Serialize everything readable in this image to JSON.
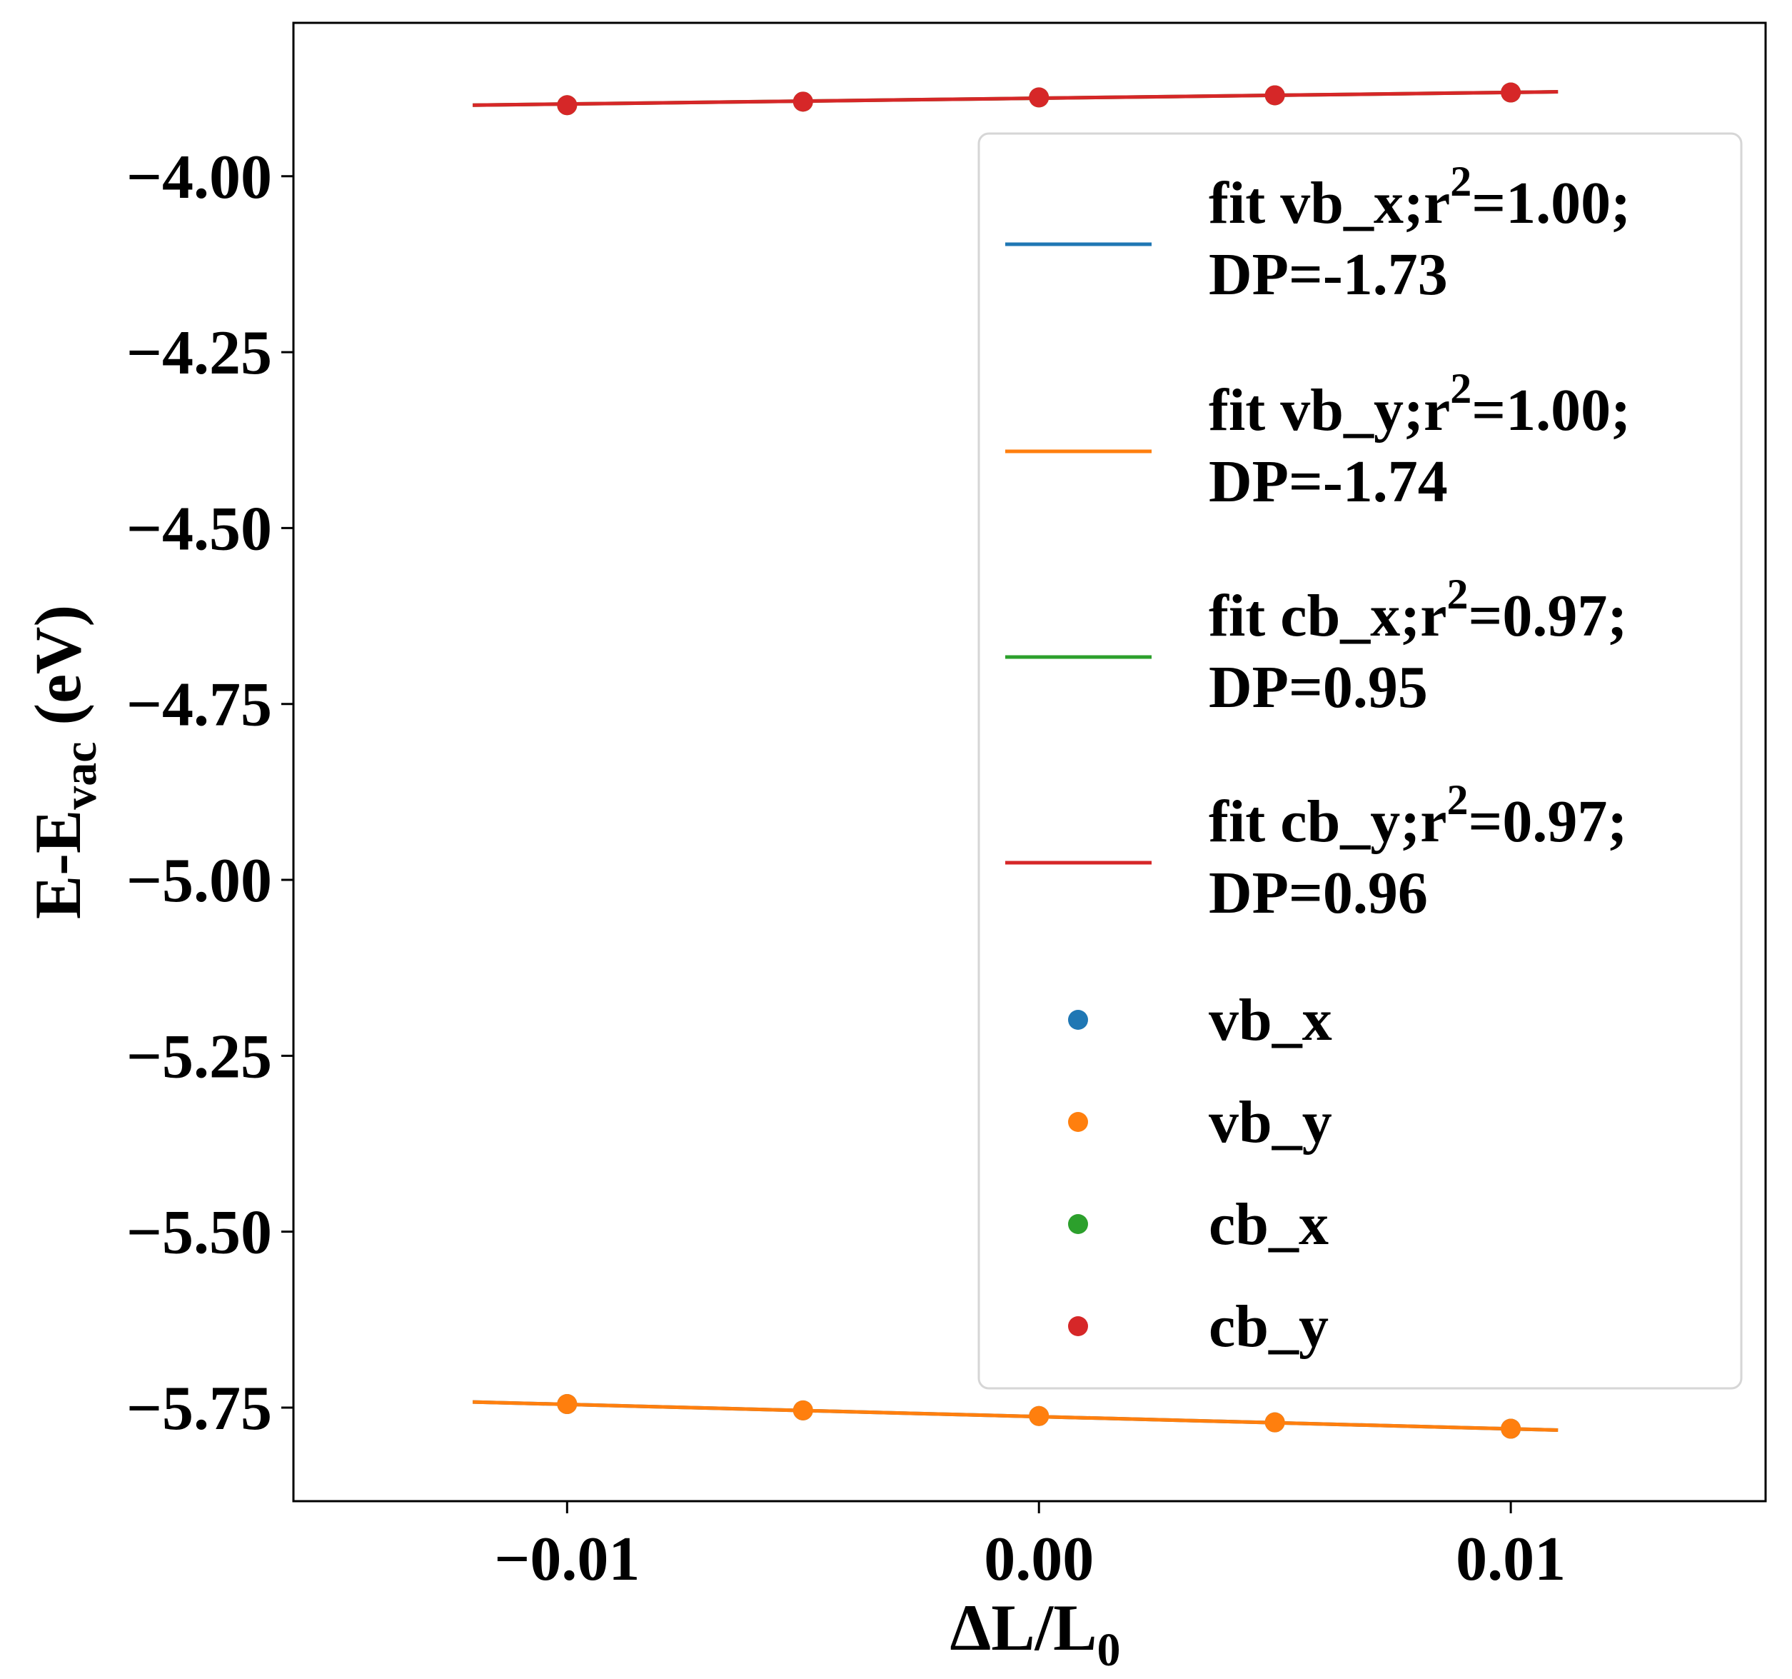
{
  "chart_data": {
    "type": "scatter",
    "x": [
      -0.01,
      -0.005,
      0.0,
      0.005,
      0.01
    ],
    "xlabel": "ΔL/L",
    "xlabel_sub": "0",
    "ylabel": "E-E",
    "ylabel_sub": "vac",
    "ylabel_suffix": " (eV)",
    "xlim": [
      -0.0158,
      0.0154
    ],
    "ylim": [
      -5.883,
      -3.782
    ],
    "x_ticks": [
      -0.01,
      0.0,
      0.01
    ],
    "x_tick_labels": [
      "−0.01",
      "0.00",
      "0.01"
    ],
    "y_ticks": [
      -4.0,
      -4.25,
      -4.5,
      -4.75,
      -5.0,
      -5.25,
      -5.5,
      -5.75
    ],
    "y_tick_labels": [
      "−4.00",
      "−4.25",
      "−4.50",
      "−4.75",
      "−5.00",
      "−5.25",
      "−5.50",
      "−5.75"
    ],
    "grid": false,
    "legend_placement": "upper right",
    "fit_x_range": [
      -0.012,
      0.011
    ],
    "series": [
      {
        "name": "vb_x",
        "color": "#1f77b4",
        "values": [
          -5.745,
          -5.754,
          -5.762,
          -5.771,
          -5.78
        ],
        "fit_line": [
          -5.742,
          -5.782
        ]
      },
      {
        "name": "vb_y",
        "color": "#ff7f0e",
        "values": [
          -5.745,
          -5.754,
          -5.762,
          -5.771,
          -5.78
        ],
        "fit_line": [
          -5.742,
          -5.782
        ]
      },
      {
        "name": "cb_x",
        "color": "#2ca02c",
        "values": [
          -3.899,
          -3.894,
          -3.888,
          -3.885,
          -3.881
        ],
        "fit_line": [
          -3.899,
          -3.88
        ]
      },
      {
        "name": "cb_y",
        "color": "#d62728",
        "values": [
          -3.899,
          -3.894,
          -3.888,
          -3.885,
          -3.881
        ],
        "fit_line": [
          -3.899,
          -3.88
        ]
      }
    ],
    "legend": {
      "fits": [
        {
          "series": "vb_x",
          "line1_a": "fit vb_x;r",
          "sup": "2",
          "line1_b": "=1.00;",
          "line2": "DP=-1.73"
        },
        {
          "series": "vb_y",
          "line1_a": "fit vb_y;r",
          "sup": "2",
          "line1_b": "=1.00;",
          "line2": "DP=-1.74"
        },
        {
          "series": "cb_x",
          "line1_a": "fit cb_x;r",
          "sup": "2",
          "line1_b": "=0.97;",
          "line2": "DP=0.95"
        },
        {
          "series": "cb_y",
          "line1_a": "fit cb_y;r",
          "sup": "2",
          "line1_b": "=0.97;",
          "line2": "DP=0.96"
        }
      ],
      "points": [
        {
          "series": "vb_x",
          "label": "vb_x"
        },
        {
          "series": "vb_y",
          "label": "vb_y"
        },
        {
          "series": "cb_x",
          "label": "cb_x"
        },
        {
          "series": "cb_y",
          "label": "cb_y"
        }
      ]
    }
  }
}
